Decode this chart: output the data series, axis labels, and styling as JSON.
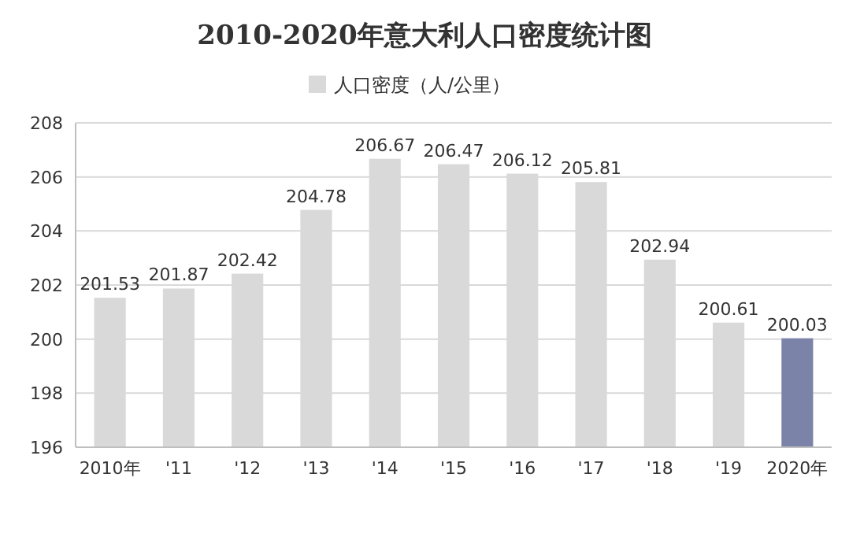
{
  "chart_data": {
    "type": "bar",
    "title": "2010-2020年意大利人口密度统计图",
    "categories": [
      "2010年",
      "'11",
      "'12",
      "'13",
      "'14",
      "'15",
      "'16",
      "'17",
      "'18",
      "'19",
      "2020年"
    ],
    "series": [
      {
        "name": "人口密度（人/公里）",
        "color": "#d9d9d9",
        "colors": [
          "#d9d9d9",
          "#d9d9d9",
          "#d9d9d9",
          "#d9d9d9",
          "#d9d9d9",
          "#d9d9d9",
          "#d9d9d9",
          "#d9d9d9",
          "#d9d9d9",
          "#d9d9d9",
          "#7b83a8"
        ],
        "values": [
          201.53,
          201.87,
          202.42,
          204.78,
          206.67,
          206.47,
          206.12,
          205.81,
          202.94,
          200.61,
          200.03
        ]
      }
    ],
    "ylim": [
      196,
      208
    ],
    "yticks": [
      196,
      198,
      200,
      202,
      204,
      206,
      208
    ],
    "grid": "y",
    "legend": "top",
    "data_labels": true
  }
}
